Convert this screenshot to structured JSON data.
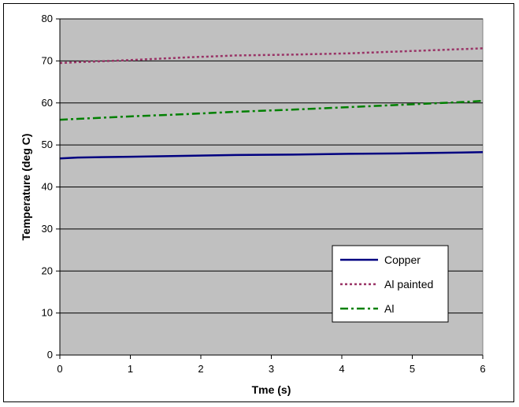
{
  "chart_data": {
    "type": "line",
    "title": "",
    "xlabel": "Tme (s)",
    "ylabel": "Temperature (deg C)",
    "xlim": [
      0,
      6
    ],
    "ylim": [
      0,
      80
    ],
    "x_ticks": [
      0,
      1,
      2,
      3,
      4,
      5,
      6
    ],
    "y_ticks": [
      0,
      10,
      20,
      30,
      40,
      50,
      60,
      70,
      80
    ],
    "grid": "horizontal",
    "plot_background": "#c0c0c0",
    "legend_position": "bottom-right",
    "x": [
      0,
      0.25,
      1,
      1.75,
      2.5,
      3.3,
      4.1,
      4.9,
      5.7,
      6
    ],
    "series": [
      {
        "name": "Copper",
        "color": "#000080",
        "dash": "solid",
        "values": [
          46.8,
          47.0,
          47.2,
          47.4,
          47.6,
          47.7,
          47.9,
          48.0,
          48.2,
          48.3
        ]
      },
      {
        "name": "Al painted",
        "color": "#993366",
        "dash": "dotted",
        "values": [
          69.5,
          69.7,
          70.2,
          70.8,
          71.3,
          71.5,
          71.8,
          72.3,
          72.8,
          73.0
        ]
      },
      {
        "name": "Al",
        "color": "#008000",
        "dash": "dash-dot",
        "values": [
          56.0,
          56.2,
          56.8,
          57.3,
          57.9,
          58.4,
          59.0,
          59.6,
          60.2,
          60.5
        ]
      }
    ]
  }
}
